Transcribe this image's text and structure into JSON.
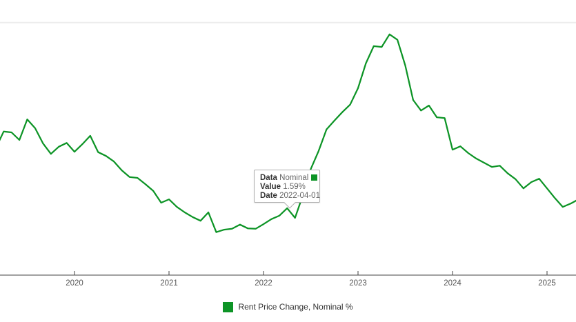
{
  "chart": {
    "legend": {
      "label": "Rent Price Change, Nominal %",
      "color": "#0d9426"
    },
    "tooltip": {
      "data_label": "Data",
      "data_value": "Nominal",
      "value_label": "Value",
      "value_value": "1.59%",
      "date_label": "Date",
      "date_value": "2022-04-01"
    },
    "colors": {
      "line": "#0d9426",
      "axis": "#404040",
      "tick_label": "#555555",
      "gridline": "#ececec"
    }
  },
  "chart_data": {
    "type": "line",
    "title": "",
    "xlabel": "",
    "ylabel": "",
    "legend_position": "bottom",
    "x_ticks": [
      "2020",
      "2021",
      "2022",
      "2023",
      "2024",
      "2025"
    ],
    "ylim": [
      0,
      6.5
    ],
    "gridline_value": 6.0,
    "grid": "top-line-only",
    "highlighted_point": {
      "date": "2022-04-01",
      "value": 1.59,
      "series": "Nominal"
    },
    "series": [
      {
        "name": "Rent Price Change, Nominal %",
        "color": "#0d9426",
        "points": [
          {
            "date": "2019-03",
            "value": 3.01
          },
          {
            "date": "2019-04",
            "value": 3.41
          },
          {
            "date": "2019-05",
            "value": 3.39
          },
          {
            "date": "2019-06",
            "value": 3.21
          },
          {
            "date": "2019-07",
            "value": 3.7
          },
          {
            "date": "2019-08",
            "value": 3.49
          },
          {
            "date": "2019-09",
            "value": 3.13
          },
          {
            "date": "2019-10",
            "value": 2.88
          },
          {
            "date": "2019-11",
            "value": 3.05
          },
          {
            "date": "2019-12",
            "value": 3.14
          },
          {
            "date": "2020-01",
            "value": 2.93
          },
          {
            "date": "2020-02",
            "value": 3.11
          },
          {
            "date": "2020-03",
            "value": 3.31
          },
          {
            "date": "2020-04",
            "value": 2.92
          },
          {
            "date": "2020-05",
            "value": 2.83
          },
          {
            "date": "2020-06",
            "value": 2.7
          },
          {
            "date": "2020-07",
            "value": 2.49
          },
          {
            "date": "2020-08",
            "value": 2.33
          },
          {
            "date": "2020-09",
            "value": 2.31
          },
          {
            "date": "2020-10",
            "value": 2.16
          },
          {
            "date": "2020-11",
            "value": 2.0
          },
          {
            "date": "2020-12",
            "value": 1.72
          },
          {
            "date": "2021-01",
            "value": 1.8
          },
          {
            "date": "2021-02",
            "value": 1.62
          },
          {
            "date": "2021-03",
            "value": 1.49
          },
          {
            "date": "2021-04",
            "value": 1.38
          },
          {
            "date": "2021-05",
            "value": 1.29
          },
          {
            "date": "2021-06",
            "value": 1.49
          },
          {
            "date": "2021-07",
            "value": 1.02
          },
          {
            "date": "2021-08",
            "value": 1.08
          },
          {
            "date": "2021-09",
            "value": 1.1
          },
          {
            "date": "2021-10",
            "value": 1.2
          },
          {
            "date": "2021-11",
            "value": 1.11
          },
          {
            "date": "2021-12",
            "value": 1.1
          },
          {
            "date": "2022-01",
            "value": 1.21
          },
          {
            "date": "2022-02",
            "value": 1.33
          },
          {
            "date": "2022-03",
            "value": 1.41
          },
          {
            "date": "2022-04",
            "value": 1.59
          },
          {
            "date": "2022-05",
            "value": 1.36
          },
          {
            "date": "2022-06",
            "value": 1.9
          },
          {
            "date": "2022-07",
            "value": 2.52
          },
          {
            "date": "2022-08",
            "value": 2.95
          },
          {
            "date": "2022-09",
            "value": 3.46
          },
          {
            "date": "2022-10",
            "value": 3.67
          },
          {
            "date": "2022-11",
            "value": 3.87
          },
          {
            "date": "2022-12",
            "value": 4.05
          },
          {
            "date": "2023-01",
            "value": 4.44
          },
          {
            "date": "2023-02",
            "value": 5.03
          },
          {
            "date": "2023-03",
            "value": 5.44
          },
          {
            "date": "2023-04",
            "value": 5.42
          },
          {
            "date": "2023-05",
            "value": 5.72
          },
          {
            "date": "2023-06",
            "value": 5.59
          },
          {
            "date": "2023-07",
            "value": 4.98
          },
          {
            "date": "2023-08",
            "value": 4.16
          },
          {
            "date": "2023-09",
            "value": 3.91
          },
          {
            "date": "2023-10",
            "value": 4.03
          },
          {
            "date": "2023-11",
            "value": 3.75
          },
          {
            "date": "2023-12",
            "value": 3.73
          },
          {
            "date": "2024-01",
            "value": 2.98
          },
          {
            "date": "2024-02",
            "value": 3.06
          },
          {
            "date": "2024-03",
            "value": 2.9
          },
          {
            "date": "2024-04",
            "value": 2.77
          },
          {
            "date": "2024-05",
            "value": 2.67
          },
          {
            "date": "2024-06",
            "value": 2.57
          },
          {
            "date": "2024-07",
            "value": 2.6
          },
          {
            "date": "2024-08",
            "value": 2.42
          },
          {
            "date": "2024-09",
            "value": 2.28
          },
          {
            "date": "2024-10",
            "value": 2.06
          },
          {
            "date": "2024-11",
            "value": 2.21
          },
          {
            "date": "2024-12",
            "value": 2.29
          },
          {
            "date": "2025-01",
            "value": 2.06
          },
          {
            "date": "2025-02",
            "value": 1.83
          },
          {
            "date": "2025-03",
            "value": 1.62
          },
          {
            "date": "2025-04",
            "value": 1.7
          },
          {
            "date": "2025-05",
            "value": 1.8
          }
        ]
      }
    ]
  }
}
